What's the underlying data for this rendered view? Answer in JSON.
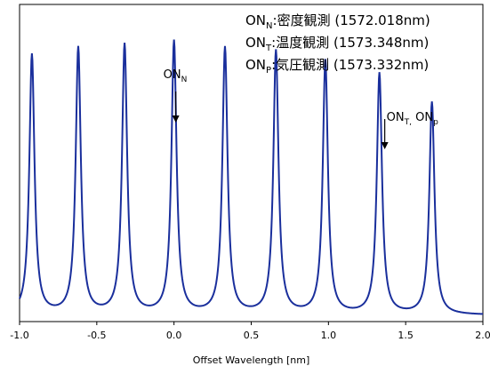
{
  "chart_data": {
    "type": "line",
    "xlabel": "Offset Wavelength [nm]",
    "xlim": [
      -1.0,
      2.0
    ],
    "xticks": [
      "-1.0",
      "-0.5",
      "0.0",
      "0.5",
      "1.0",
      "1.5",
      "2.0"
    ],
    "xtick_values": [
      -1.0,
      -0.5,
      0.0,
      0.5,
      1.0,
      1.5,
      2.0
    ],
    "ylim": [
      0,
      1.0
    ],
    "grid": false,
    "line_color": "#1a2f9c",
    "series": [
      {
        "peaks": [
          {
            "x": -0.92,
            "y": 0.84
          },
          {
            "x": -0.62,
            "y": 0.86
          },
          {
            "x": -0.32,
            "y": 0.87
          },
          {
            "x": 0.0,
            "y": 0.88
          },
          {
            "x": 0.33,
            "y": 0.86
          },
          {
            "x": 0.66,
            "y": 0.85
          },
          {
            "x": 0.98,
            "y": 0.82
          },
          {
            "x": 1.33,
            "y": 0.78
          },
          {
            "x": 1.67,
            "y": 0.69
          }
        ],
        "baseline": 0.02,
        "peak_halfwidth": 0.02
      }
    ],
    "legend": {
      "placement": "top-right",
      "entries": [
        {
          "label": "ON",
          "sub": "N",
          "text": ":密度観測 (1572.018nm)"
        },
        {
          "label": "ON",
          "sub": "T",
          "text": ":温度観測 (1573.348nm)"
        },
        {
          "label": "ON",
          "sub": "P",
          "text": ":気圧観測 (1573.332nm)"
        }
      ]
    },
    "annotations": [
      {
        "x": 0.0,
        "label": "ON",
        "sub": "N",
        "extra": "",
        "extra_sub": ""
      },
      {
        "x": 1.33,
        "label": "ON",
        "sub": "T,",
        "extra": " ON",
        "extra_sub": "p"
      }
    ]
  }
}
